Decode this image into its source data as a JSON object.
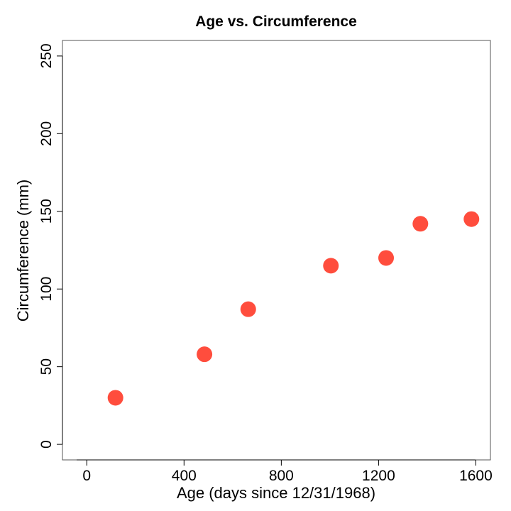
{
  "chart_data": {
    "type": "scatter",
    "title": "Age vs. Circumference",
    "xlabel": "Age (days since 12/31/1968)",
    "ylabel": "Circumference (mm)",
    "xlim": [
      -100,
      1660
    ],
    "ylim": [
      -10,
      260
    ],
    "xticks": [
      0,
      400,
      800,
      1200,
      1600
    ],
    "yticks": [
      0,
      50,
      100,
      150,
      200,
      250
    ],
    "grid": false,
    "point_color": "#FF4D3D",
    "series": [
      {
        "x": [
          118,
          484,
          664,
          1004,
          1231,
          1372,
          1582
        ],
        "y": [
          30,
          58,
          87,
          115,
          120,
          142,
          145
        ]
      }
    ]
  }
}
